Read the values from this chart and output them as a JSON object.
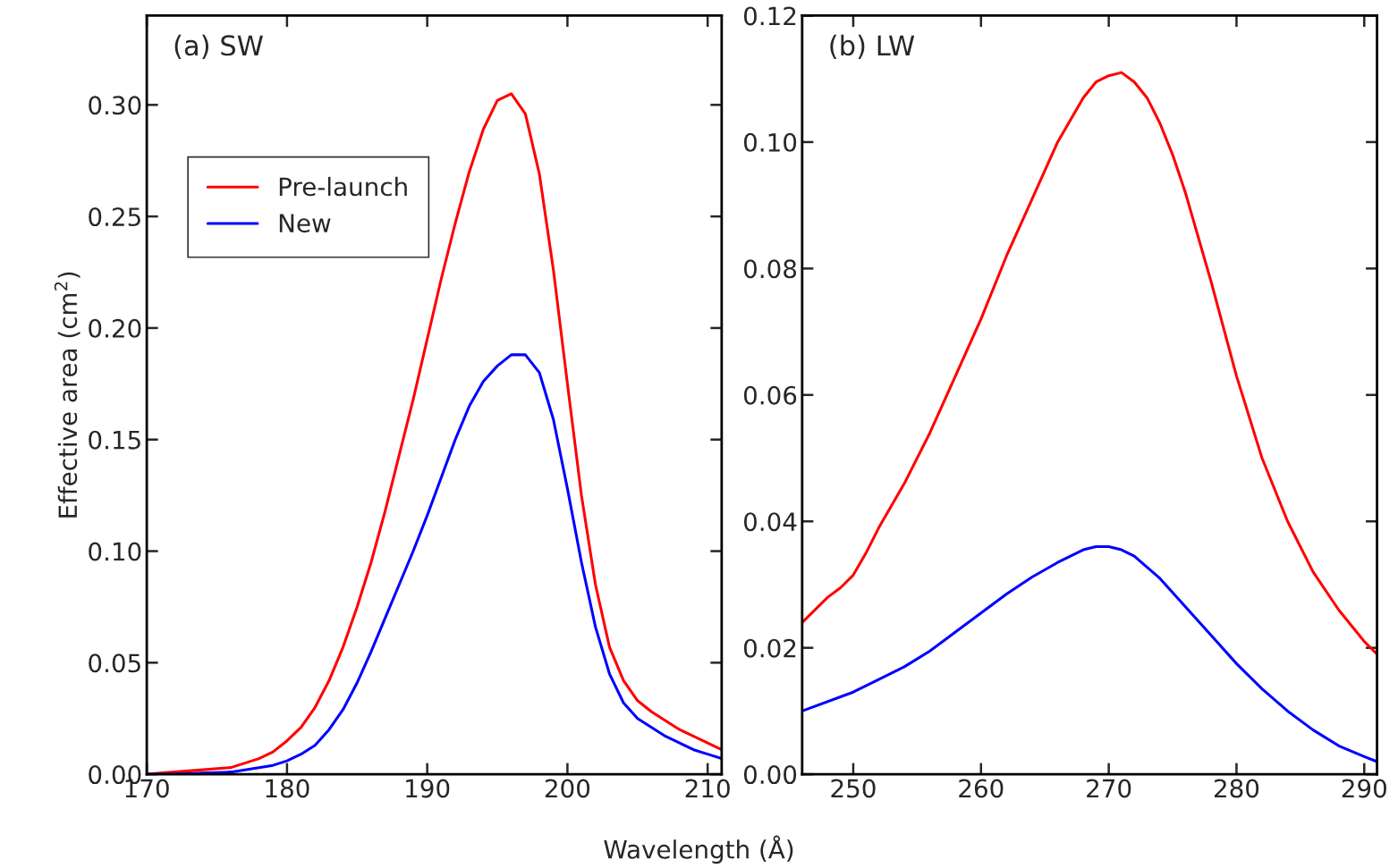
{
  "chart_data": [
    {
      "type": "line",
      "title": "(a) SW",
      "ylabel": "Effective area (cm$^{2}$)",
      "xlabel": "Wavelength (Å)",
      "legend": "top left",
      "grid": false,
      "xlim": [
        170,
        211
      ],
      "ylim": [
        0,
        0.34
      ],
      "xticks": [
        170,
        180,
        190,
        200,
        210
      ],
      "yticks": [
        {
          "value": 0,
          "label": "0.00"
        },
        {
          "value": 0.05,
          "label": "0.05"
        },
        {
          "value": 0.1,
          "label": "0.10"
        },
        {
          "value": 0.15,
          "label": "0.15"
        },
        {
          "value": 0.2,
          "label": "0.20"
        },
        {
          "value": 0.25,
          "label": "0.25"
        },
        {
          "value": 0.3,
          "label": "0.30"
        }
      ],
      "x": [
        170,
        172,
        174,
        176,
        178,
        179,
        180,
        181,
        182,
        183,
        184,
        185,
        186,
        187,
        188,
        189,
        190,
        191,
        192,
        193,
        194,
        195,
        196,
        197,
        198,
        199,
        200,
        201,
        202,
        203,
        204,
        205,
        206,
        207,
        208,
        209,
        210,
        211
      ],
      "series": [
        {
          "name": "Pre-launch",
          "color": "#ff0000",
          "values": [
            0,
            0.001,
            0.002,
            0.003,
            0.007,
            0.01,
            0.015,
            0.021,
            0.03,
            0.042,
            0.057,
            0.075,
            0.095,
            0.118,
            0.143,
            0.168,
            0.195,
            0.222,
            0.247,
            0.27,
            0.289,
            0.302,
            0.305,
            0.296,
            0.269,
            0.226,
            0.175,
            0.125,
            0.085,
            0.057,
            0.042,
            0.033,
            0.028,
            0.024,
            0.02,
            0.017,
            0.014,
            0.011
          ]
        },
        {
          "name": "New",
          "color": "#0000ff",
          "values": [
            0,
            0,
            0.0005,
            0.001,
            0.003,
            0.004,
            0.006,
            0.009,
            0.013,
            0.02,
            0.029,
            0.041,
            0.055,
            0.07,
            0.085,
            0.1,
            0.116,
            0.133,
            0.15,
            0.165,
            0.176,
            0.183,
            0.188,
            0.188,
            0.18,
            0.159,
            0.128,
            0.095,
            0.066,
            0.045,
            0.032,
            0.025,
            0.021,
            0.017,
            0.014,
            0.011,
            0.009,
            0.007
          ]
        }
      ]
    },
    {
      "type": "line",
      "title": "(b) LW",
      "legend": false,
      "grid": false,
      "xlim": [
        246,
        291
      ],
      "ylim": [
        0,
        0.12
      ],
      "xticks": [
        250,
        260,
        270,
        280,
        290
      ],
      "yticks": [
        {
          "value": 0,
          "label": "0.00"
        },
        {
          "value": 0.02,
          "label": "0.02"
        },
        {
          "value": 0.04,
          "label": "0.04"
        },
        {
          "value": 0.06,
          "label": "0.06"
        },
        {
          "value": 0.08,
          "label": "0.08"
        },
        {
          "value": 0.1,
          "label": "0.10"
        },
        {
          "value": 0.12,
          "label": "0.12"
        }
      ],
      "series": [
        {
          "color": "#ff0000",
          "x": [
            246,
            248,
            249,
            250,
            251,
            252,
            254,
            256,
            258,
            260,
            262,
            264,
            266,
            268,
            269,
            270,
            271,
            272,
            273,
            274,
            275,
            276,
            278,
            280,
            282,
            284,
            286,
            288,
            290,
            291
          ],
          "values": [
            0.024,
            0.028,
            0.0295,
            0.0315,
            0.035,
            0.039,
            0.046,
            0.054,
            0.063,
            0.072,
            0.082,
            0.091,
            0.1,
            0.107,
            0.1095,
            0.1105,
            0.111,
            0.1095,
            0.107,
            0.103,
            0.098,
            0.092,
            0.078,
            0.063,
            0.05,
            0.04,
            0.032,
            0.026,
            0.021,
            0.019
          ]
        },
        {
          "color": "#0000ff",
          "x": [
            246,
            250,
            254,
            256,
            258,
            260,
            262,
            264,
            266,
            268,
            269,
            270,
            271,
            272,
            274,
            276,
            278,
            280,
            282,
            284,
            286,
            288,
            290,
            291
          ],
          "values": [
            0.01,
            0.013,
            0.017,
            0.0195,
            0.0225,
            0.0255,
            0.0285,
            0.0312,
            0.0335,
            0.0355,
            0.036,
            0.036,
            0.0355,
            0.0345,
            0.031,
            0.0265,
            0.022,
            0.0175,
            0.0135,
            0.01,
            0.007,
            0.0045,
            0.0028,
            0.002
          ]
        }
      ]
    }
  ]
}
